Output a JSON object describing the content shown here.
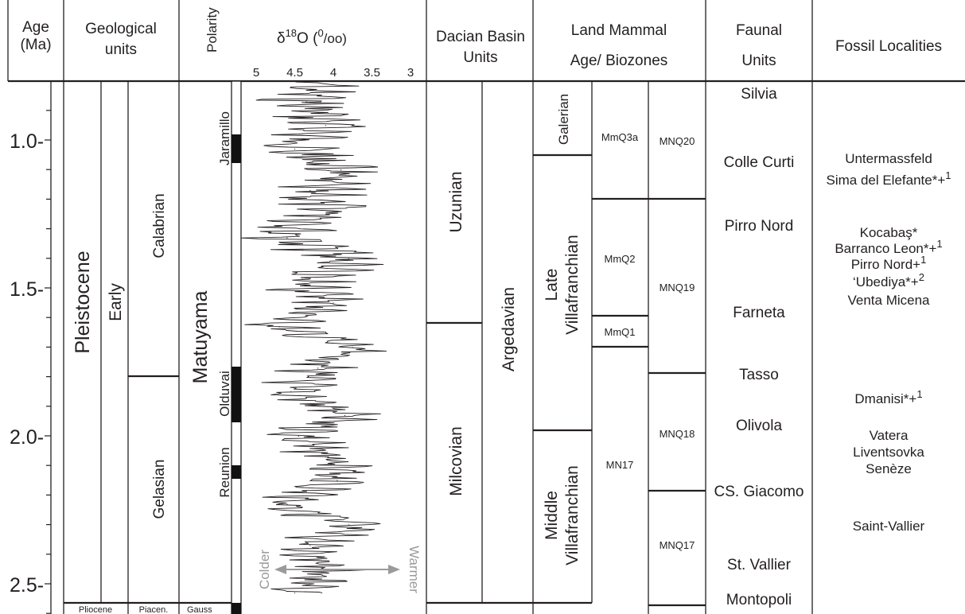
{
  "headers": {
    "age": [
      "Age",
      "(Ma)"
    ],
    "geological_units": [
      "Geological",
      "units"
    ],
    "polarity": "Polarity",
    "d18o_pre": "δ",
    "d18o_sup": "18",
    "d18o_post": "O (",
    "d18o_unit_sup": "0",
    "d18o_unit": "/oo)",
    "d18o_ticks": [
      "5",
      "4.5",
      "4",
      "3.5",
      "3"
    ],
    "dacian": [
      "Dacian Basin",
      "Units"
    ],
    "lma": [
      "Land Mammal",
      "Age/ Biozones"
    ],
    "faunal": [
      "Faunal",
      "Units"
    ],
    "fossil": "Fossil Localities"
  },
  "age_ticks": [
    "1.0-",
    "1.5-",
    "2.0-",
    "2.5-"
  ],
  "geology": {
    "epoch": "Pleistocene",
    "subepoch": "Early",
    "stage_upper": "Calabrian",
    "stage_lower": "Gelasian",
    "bottom_epoch": "Pliocene",
    "bottom_stage": "Piacen."
  },
  "polarity": {
    "chron": "Matuyama",
    "bottom_chron": "Gauss",
    "subchrons": [
      "Jaramillo",
      "Olduvai",
      "Reunion"
    ]
  },
  "d18o_arrow": {
    "left": "Colder",
    "right": "Warmer"
  },
  "dacian": {
    "col1": [
      "Uzunian",
      "Milcovian"
    ],
    "col2": "Argedavian"
  },
  "lma": {
    "ages": [
      "Galerian",
      "Late",
      "Villafranchian",
      "Middle",
      "Villafranchian"
    ],
    "mmq": [
      "MmQ3a",
      "MmQ2",
      "MmQ1",
      "MN17"
    ],
    "mnq": [
      "MNQ20",
      "MNQ19",
      "MNQ18",
      "MNQ17"
    ]
  },
  "faunal_units": [
    "Silvia",
    "Colle Curti",
    "Pirro Nord",
    "Farneta",
    "Tasso",
    "Olivola",
    "CS. Giacomo",
    "St. Vallier",
    "Montopoli"
  ],
  "localities": {
    "untermassfeld": "Untermassfeld",
    "sima": "Sima del Elefante*+",
    "sima_sup": "1",
    "kocabas": "Kocabaş*",
    "barranco": "Barranco Leon*+",
    "barranco_sup": "1",
    "pirro": "Pirro Nord+",
    "pirro_sup": "1",
    "ubediya": "‘Ubediya*+",
    "ubediya_sup": "2",
    "venta": "Venta Micena",
    "dmanisi": "Dmanisi*+",
    "dmanisi_sup": "1",
    "vatera": "Vatera",
    "liventsovka": "Liventsovka",
    "seneze": "Senèze",
    "saint_vallier": "Saint-Vallier"
  },
  "chart_data": {
    "type": "line",
    "x_label": "δ18O (0/oo)",
    "y_label": "Age (Ma)",
    "xlim": [
      5,
      3
    ],
    "ylim": [
      0.85,
      2.6
    ],
    "x": [
      4.2,
      4.35,
      4.1,
      4.5,
      3.9,
      4.3,
      4.05,
      4.6,
      3.8,
      4.4,
      4.0,
      4.7,
      3.75,
      4.2,
      4.55,
      3.85,
      4.45,
      4.1,
      3.95,
      4.6,
      3.8,
      4.3,
      4.05,
      4.5
    ],
    "y": [
      0.85,
      0.92,
      1.0,
      1.08,
      1.15,
      1.22,
      1.3,
      1.38,
      1.45,
      1.52,
      1.6,
      1.68,
      1.75,
      1.82,
      1.9,
      1.98,
      2.05,
      2.12,
      2.2,
      2.28,
      2.35,
      2.42,
      2.5,
      2.58
    ]
  }
}
